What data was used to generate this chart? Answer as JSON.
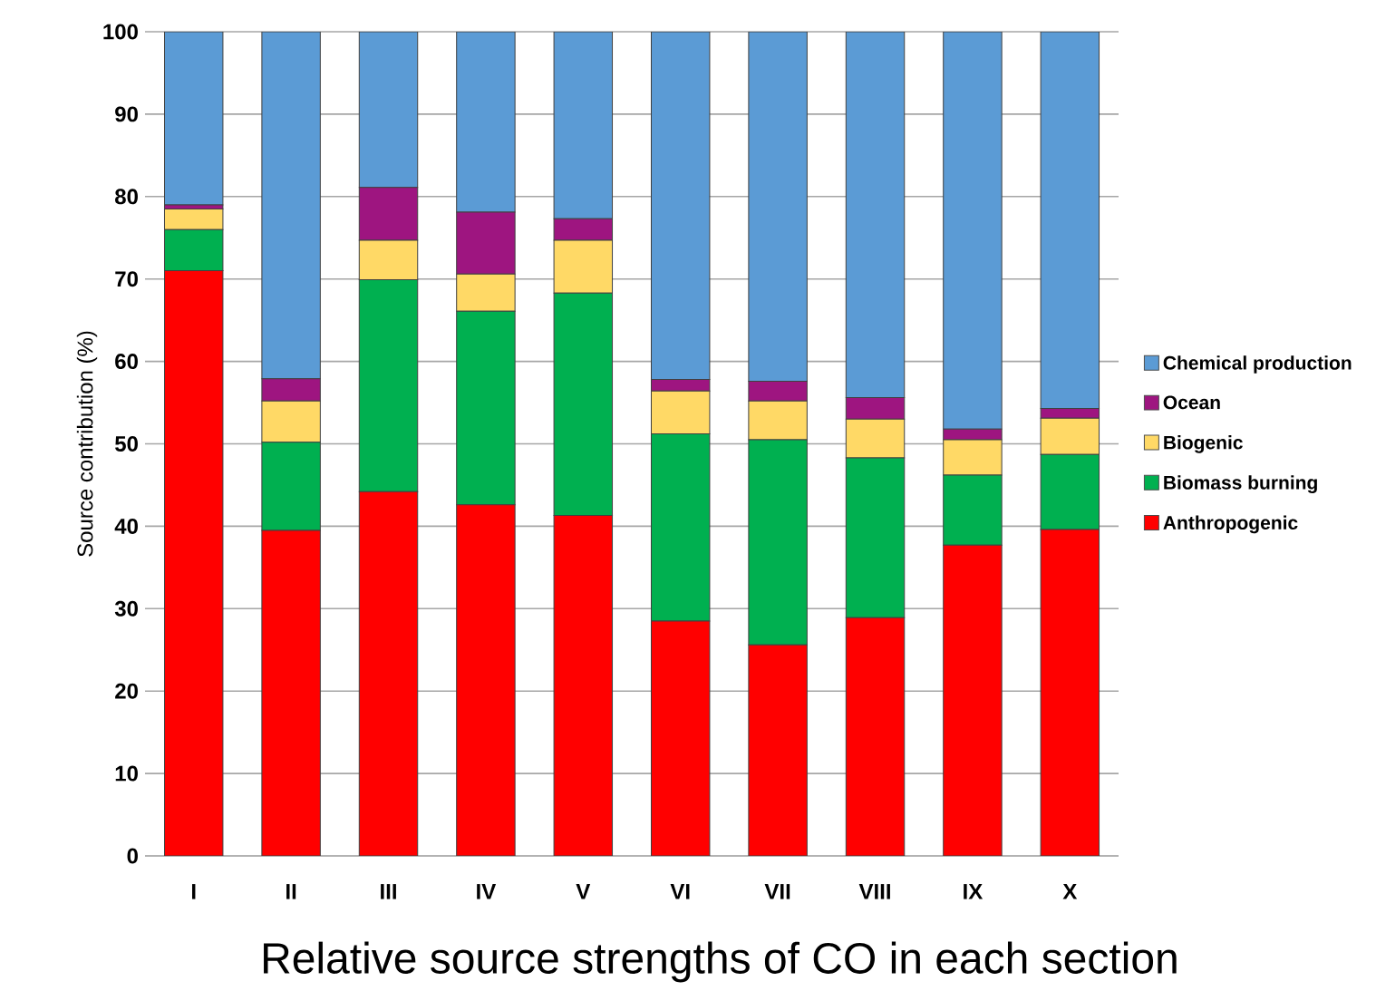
{
  "chart_data": {
    "type": "bar",
    "stacked": true,
    "title": "Relative source strengths of CO in each section",
    "ylabel": "Source contribution (%)",
    "categories": [
      "I",
      "II",
      "III",
      "IV",
      "V",
      "VI",
      "VII",
      "VIII",
      "IX",
      "X"
    ],
    "series": [
      {
        "name": "Anthropogenic",
        "color": "#ff0000",
        "values": [
          71,
          39.5,
          44.2,
          42.6,
          41.3,
          28.5,
          25.6,
          28.9,
          37.7,
          39.6
        ]
      },
      {
        "name": "Biomass burning",
        "color": "#00b050",
        "values": [
          5,
          10.7,
          25.7,
          23.5,
          27,
          22.7,
          24.9,
          19.4,
          8.5,
          9.1
        ]
      },
      {
        "name": "Biogenic",
        "color": "#ffd966",
        "values": [
          2.5,
          5,
          4.8,
          4.5,
          6.4,
          5.2,
          4.7,
          4.7,
          4.3,
          4.4
        ]
      },
      {
        "name": "Ocean",
        "color": "#9e1580",
        "values": [
          0.5,
          2.7,
          6.4,
          7.5,
          2.6,
          1.4,
          2.4,
          2.6,
          1.3,
          1.2
        ]
      },
      {
        "name": "Chemical production",
        "color": "#5b9bd5",
        "values": [
          21,
          42.1,
          18.9,
          21.9,
          22.7,
          42.2,
          42.4,
          44.4,
          48.2,
          45.7
        ]
      }
    ],
    "ylim": [
      0,
      100
    ],
    "yticks": [
      0,
      10,
      20,
      30,
      40,
      50,
      60,
      70,
      80,
      90,
      100
    ],
    "grid": "y",
    "legend": "right"
  }
}
